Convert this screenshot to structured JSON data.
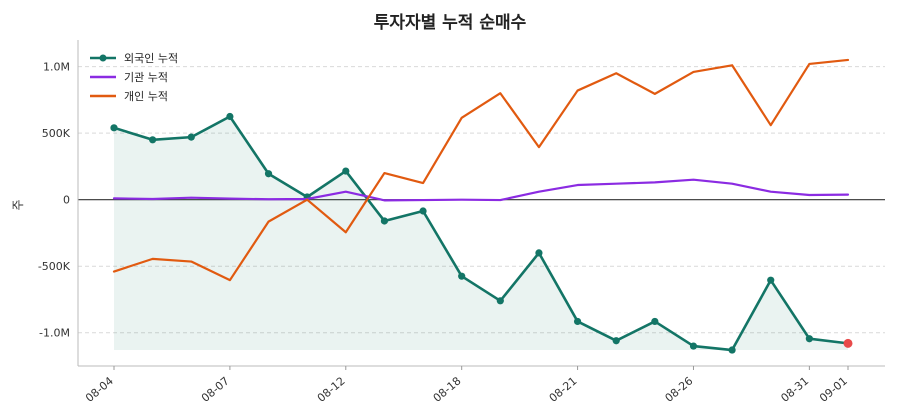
{
  "chart_data": {
    "type": "line",
    "title": "투자자별 누적 순매수",
    "ylabel": "주",
    "xlabel": "",
    "ylim": [
      -1250000,
      1200000
    ],
    "yticks": [
      -1000000,
      -500000,
      0,
      500000,
      1000000
    ],
    "yticklabels": [
      "-1.0M",
      "-500K",
      "0",
      "500K",
      "1.0M"
    ],
    "x": [
      "08-04",
      "08-05",
      "08-06",
      "08-07",
      "08-08",
      "08-11",
      "08-12",
      "08-13",
      "08-14",
      "08-18",
      "08-19",
      "08-20",
      "08-21",
      "08-22",
      "08-25",
      "08-26",
      "08-27",
      "08-28",
      "08-31",
      "09-01"
    ],
    "xticklabels": [
      "08-04",
      "08-07",
      "08-12",
      "08-18",
      "08-21",
      "08-26",
      "08-31",
      "09-01"
    ],
    "grid": "horizontal-dashed",
    "legend_position": "top-left",
    "series": [
      {
        "name": "외국인 누적",
        "color": "#137566",
        "marker": "circle",
        "fill": true,
        "values": [
          540000,
          450000,
          470000,
          625000,
          195000,
          20000,
          215000,
          -160000,
          -85000,
          -575000,
          -760000,
          -400000,
          -915000,
          -1060000,
          -915000,
          -1100000,
          -1130000,
          -605000,
          -1045000,
          -1080000
        ]
      },
      {
        "name": "기관 누적",
        "color": "#8b2be2",
        "marker": "none",
        "fill": false,
        "values": [
          10000,
          5000,
          15000,
          8000,
          3000,
          5000,
          60000,
          -5000,
          -3000,
          0,
          -3000,
          60000,
          110000,
          120000,
          130000,
          150000,
          120000,
          60000,
          35000,
          38000
        ]
      },
      {
        "name": "개인 누적",
        "color": "#e15a10",
        "marker": "none",
        "fill": false,
        "values": [
          -540000,
          -445000,
          -465000,
          -605000,
          -165000,
          0,
          -245000,
          200000,
          125000,
          615000,
          800000,
          395000,
          820000,
          950000,
          795000,
          960000,
          1010000,
          560000,
          1020000,
          1050000
        ]
      }
    ],
    "highlight_last_color": "#e84a4a"
  }
}
